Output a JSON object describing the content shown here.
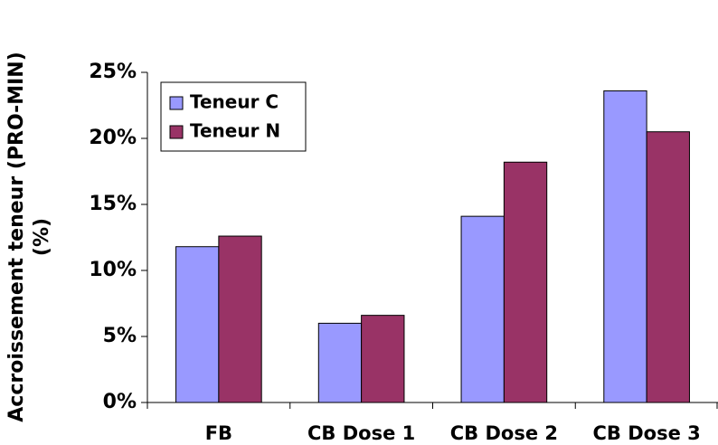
{
  "chart_data": {
    "type": "bar",
    "y_label": [
      "Accroissement teneur (PRO-MIN)",
      "(%)"
    ],
    "categories": [
      "FB",
      "CB Dose 1",
      "CB Dose 2",
      "CB Dose 3"
    ],
    "series": [
      {
        "name": "Teneur C",
        "color": "#9999ff",
        "values": [
          11.8,
          6.0,
          14.1,
          23.6
        ]
      },
      {
        "name": "Teneur N",
        "color": "#993366",
        "values": [
          12.6,
          6.6,
          18.2,
          20.5
        ]
      }
    ],
    "ylim": [
      0,
      25
    ],
    "yticks": [
      {
        "value": 0,
        "label": "0%"
      },
      {
        "value": 5,
        "label": "5%"
      },
      {
        "value": 10,
        "label": "10%"
      },
      {
        "value": 15,
        "label": "15%"
      },
      {
        "value": 20,
        "label": "20%"
      },
      {
        "value": 25,
        "label": "25%"
      }
    ],
    "legend": "upper-left"
  }
}
